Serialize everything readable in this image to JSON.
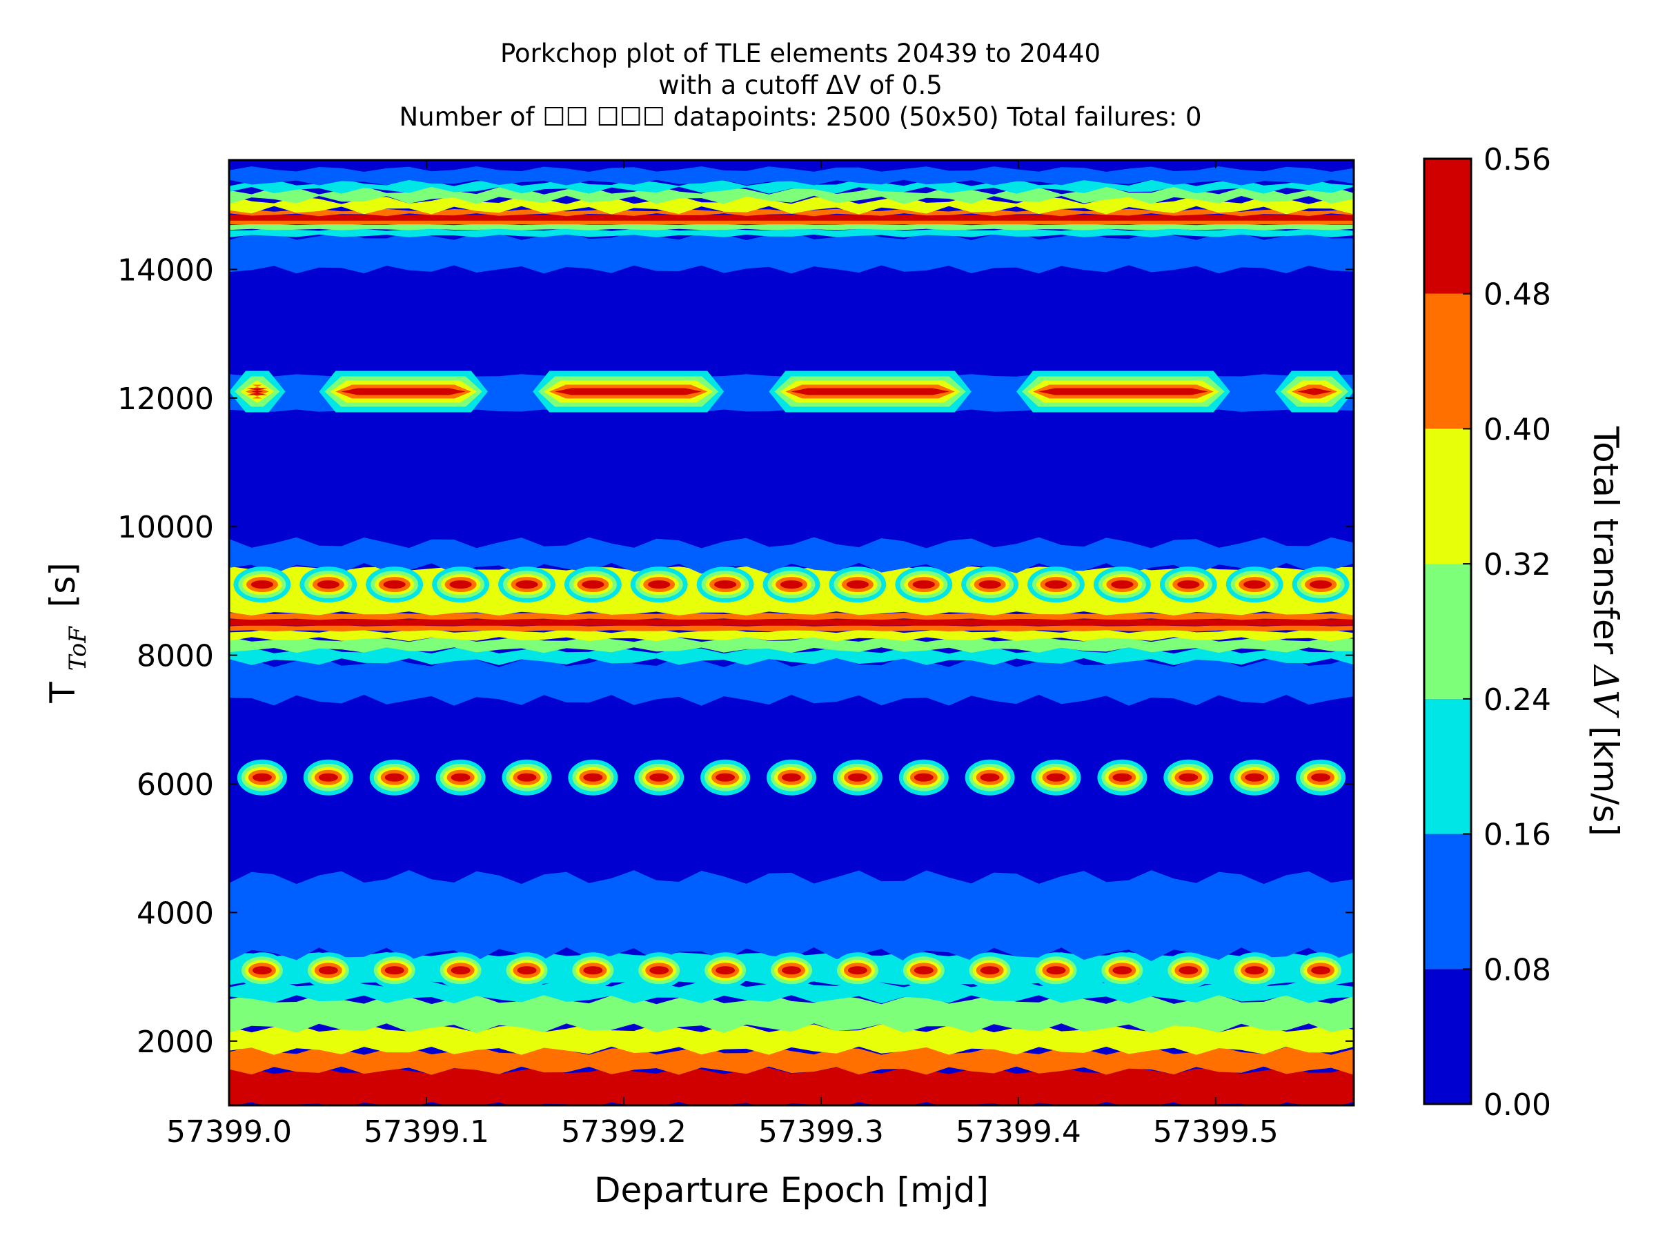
{
  "chart_data": {
    "type": "heatmap",
    "title_lines": [
      "Porkchop plot of TLE elements 20439 to 20440",
      "with a cutoff ΔV of 0.5",
      "Number of ☐☐ ☐☐☐ datapoints: 2500 (50x50) Total failures: 0"
    ],
    "xlabel": "Departure Epoch [mjd]",
    "ylabel": "T_ToF [s]",
    "ylabel_main": "T",
    "ylabel_sub": "ToF",
    "ylabel_unit": "[s]",
    "xlim": [
      57399.0,
      57399.57
    ],
    "ylim": [
      1000,
      15700
    ],
    "x_ticks": [
      57399.0,
      57399.1,
      57399.2,
      57399.3,
      57399.4,
      57399.5
    ],
    "x_tick_labels": [
      "57399.0",
      "57399.1",
      "57399.2",
      "57399.3",
      "57399.4",
      "57399.5"
    ],
    "y_ticks": [
      2000,
      4000,
      6000,
      8000,
      10000,
      12000,
      14000
    ],
    "y_tick_labels": [
      "2000",
      "4000",
      "6000",
      "8000",
      "10000",
      "12000",
      "14000"
    ],
    "colorbar": {
      "label": "Total transfer ΔV [km/s]",
      "label_prefix": "Total transfer ",
      "label_symbol": "ΔV",
      "label_suffix": " [km/s]",
      "levels": [
        0.0,
        0.08,
        0.16,
        0.24,
        0.32,
        0.4,
        0.48,
        0.56
      ],
      "tick_labels": [
        "0.00",
        "0.08",
        "0.16",
        "0.24",
        "0.32",
        "0.40",
        "0.48",
        "0.56"
      ],
      "colors": [
        "#0000d0",
        "#0060ff",
        "#00e5e5",
        "#7dff7a",
        "#e8ff0a",
        "#ff7000",
        "#d00000"
      ]
    },
    "grid": false,
    "bands": [
      {
        "tof_range": [
          1000,
          1550
        ],
        "delta_v": "0.48-0.56"
      },
      {
        "tof_range": [
          1550,
          1850
        ],
        "delta_v": "0.40-0.48"
      },
      {
        "tof_range": [
          1850,
          2200
        ],
        "delta_v": "0.32-0.40"
      },
      {
        "tof_range": [
          2200,
          2650
        ],
        "delta_v": "0.24-0.32"
      },
      {
        "tof_range": [
          2650,
          2900
        ],
        "delta_v": "0.16-0.24"
      },
      {
        "tof_range": [
          2900,
          3350
        ],
        "delta_v": "spots up to 0.56 at 3100 s"
      },
      {
        "tof_range": [
          3350,
          4500
        ],
        "delta_v": "0.08-0.16"
      },
      {
        "tof_range": [
          4500,
          5800
        ],
        "delta_v": "0.00-0.08"
      },
      {
        "tof_range": [
          5800,
          6350
        ],
        "delta_v": "spots up to 0.56 at 6100 s"
      },
      {
        "tof_range": [
          6350,
          7300
        ],
        "delta_v": "0.00-0.08"
      },
      {
        "tof_range": [
          7300,
          7900
        ],
        "delta_v": "0.08-0.16"
      },
      {
        "tof_range": [
          7900,
          8300
        ],
        "delta_v": "0.16-0.32"
      },
      {
        "tof_range": [
          8300,
          8650
        ],
        "delta_v": "0.40-0.56, line at 8500 s"
      },
      {
        "tof_range": [
          8650,
          9400
        ],
        "delta_v": "0.32-0.40 with spots up to 0.56 at 9100 s"
      },
      {
        "tof_range": [
          9400,
          9750
        ],
        "delta_v": "0.08-0.16"
      },
      {
        "tof_range": [
          9750,
          11800
        ],
        "delta_v": "0.00-0.08"
      },
      {
        "tof_range": [
          11800,
          12350
        ],
        "delta_v": "spots up to 0.56 at 12100 s"
      },
      {
        "tof_range": [
          12350,
          14000
        ],
        "delta_v": "0.00-0.08"
      },
      {
        "tof_range": [
          14000,
          14500
        ],
        "delta_v": "0.08-0.16"
      },
      {
        "tof_range": [
          14500,
          14950
        ],
        "delta_v": "0.16-0.56, line at 14800 s"
      },
      {
        "tof_range": [
          14950,
          15350
        ],
        "delta_v": "0.16-0.40"
      },
      {
        "tof_range": [
          15350,
          15700
        ],
        "delta_v": "0.00-0.16"
      }
    ]
  }
}
